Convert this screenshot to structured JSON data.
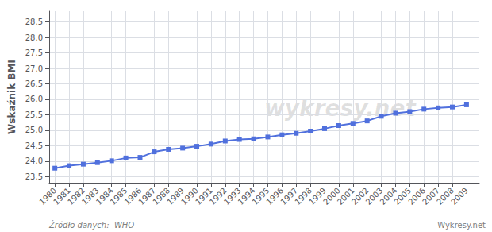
{
  "chart_data": {
    "type": "line",
    "ylabel": "Wskaźnik BMI",
    "watermark": "wykresy.net",
    "source_note": "Źródło danych:  WHO",
    "site_note": "Wykresy.net",
    "x": [
      1980,
      1981,
      1982,
      1983,
      1984,
      1985,
      1986,
      1987,
      1988,
      1989,
      1990,
      1991,
      1992,
      1993,
      1994,
      1995,
      1996,
      1997,
      1998,
      1999,
      2000,
      2001,
      2002,
      2003,
      2004,
      2005,
      2006,
      2007,
      2008,
      2009
    ],
    "values": [
      23.77,
      23.85,
      23.9,
      23.95,
      24.01,
      24.1,
      24.12,
      24.3,
      24.38,
      24.42,
      24.48,
      24.55,
      24.65,
      24.7,
      24.72,
      24.78,
      24.85,
      24.9,
      24.97,
      25.05,
      25.15,
      25.22,
      25.3,
      25.45,
      25.55,
      25.6,
      25.68,
      25.72,
      25.75,
      25.82
    ],
    "xlim": [
      1979.6,
      2009.9
    ],
    "xticks": [
      1980,
      1981,
      1982,
      1983,
      1984,
      1985,
      1986,
      1987,
      1988,
      1989,
      1990,
      1991,
      1992,
      1993,
      1994,
      1995,
      1996,
      1997,
      1998,
      1999,
      2000,
      2001,
      2002,
      2003,
      2004,
      2005,
      2006,
      2007,
      2008,
      2009
    ],
    "ylim": [
      23.3,
      28.85
    ],
    "yticks": [
      23.5,
      {
        "value": 24,
        "label": "24.0"
      },
      24.5,
      {
        "value": 25,
        "label": "25.0"
      },
      25.5,
      {
        "value": 26,
        "label": "26.0"
      },
      26.5,
      {
        "value": 27,
        "label": "27.0"
      },
      27.5,
      {
        "value": 28,
        "label": "28.0"
      },
      28.5
    ],
    "marker": "square",
    "grid": true
  }
}
